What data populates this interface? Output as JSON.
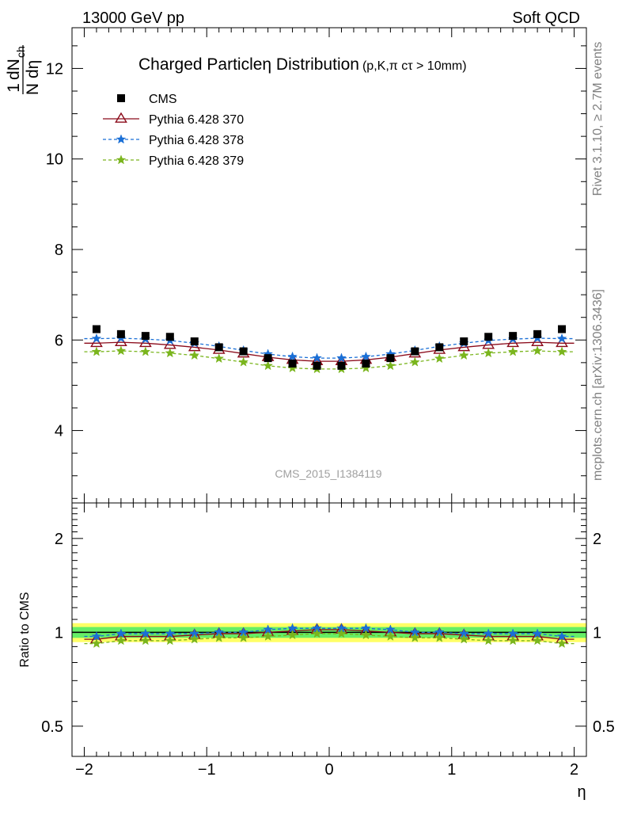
{
  "header": {
    "left": "13000 GeV pp",
    "right": "Soft QCD"
  },
  "side": {
    "rivet": "Rivet 3.1.10, ≥ 2.7M events",
    "mcplots": "mcplots.cern.ch [arXiv:1306.3436]"
  },
  "chart_data": {
    "type": "scatter",
    "title": "Charged Particleη Distribution",
    "subtitle": "(p,K,π cτ > 10mm)",
    "watermark": "CMS_2015_I1384119",
    "xlabel": "η",
    "ylabel": "1/N dN_ch/dη",
    "ratio_ylabel": "Ratio to CMS",
    "xlim": [
      -2.1,
      2.1
    ],
    "ylim": [
      2.4,
      12.9
    ],
    "ratio_ylim": [
      0.4,
      2.6
    ],
    "ratio_log_scale": true,
    "x": [
      -1.9,
      -1.7,
      -1.5,
      -1.3,
      -1.1,
      -0.9,
      -0.7,
      -0.5,
      -0.3,
      -0.1,
      0.1,
      0.3,
      0.5,
      0.7,
      0.9,
      1.1,
      1.3,
      1.5,
      1.7,
      1.9
    ],
    "x_ticks": [
      "−2",
      "−1",
      "0",
      "1",
      "2"
    ],
    "y_ticks": [
      "4",
      "6",
      "8",
      "10",
      "12"
    ],
    "ratio_ticks": [
      "0.5",
      "1",
      "2"
    ],
    "series": [
      {
        "name": "CMS",
        "role": "data",
        "color": "#000000",
        "marker": "square",
        "values": [
          6.24,
          6.13,
          6.09,
          6.07,
          5.97,
          5.84,
          5.75,
          5.6,
          5.48,
          5.43,
          5.43,
          5.48,
          5.6,
          5.75,
          5.84,
          5.97,
          6.07,
          6.09,
          6.13,
          6.24
        ]
      },
      {
        "name": "Pythia 6.428 370",
        "color": "#8b0a1a",
        "marker": "open-triangle",
        "dash": "solid",
        "values": [
          5.93,
          5.95,
          5.93,
          5.89,
          5.84,
          5.78,
          5.7,
          5.62,
          5.56,
          5.53,
          5.53,
          5.56,
          5.62,
          5.7,
          5.78,
          5.84,
          5.89,
          5.93,
          5.95,
          5.93
        ],
        "ratio": [
          0.95,
          0.97,
          0.97,
          0.97,
          0.98,
          0.99,
          0.99,
          1.0,
          1.01,
          1.02,
          1.02,
          1.01,
          1.0,
          0.99,
          0.99,
          0.98,
          0.97,
          0.97,
          0.97,
          0.95
        ]
      },
      {
        "name": "Pythia 6.428 378",
        "color": "#1a6fd6",
        "marker": "star",
        "dash": "dashed",
        "values": [
          6.03,
          6.04,
          6.02,
          5.99,
          5.93,
          5.86,
          5.77,
          5.69,
          5.63,
          5.6,
          5.6,
          5.63,
          5.69,
          5.77,
          5.86,
          5.93,
          5.99,
          6.02,
          6.04,
          6.03
        ],
        "ratio": [
          0.97,
          0.99,
          0.99,
          0.99,
          0.99,
          1.0,
          1.0,
          1.02,
          1.03,
          1.03,
          1.03,
          1.03,
          1.02,
          1.0,
          1.0,
          0.99,
          0.99,
          0.99,
          0.99,
          0.97
        ]
      },
      {
        "name": "Pythia 6.428 379",
        "color": "#7ab51d",
        "marker": "star",
        "dash": "dashed",
        "values": [
          5.74,
          5.76,
          5.74,
          5.71,
          5.66,
          5.59,
          5.51,
          5.43,
          5.38,
          5.36,
          5.36,
          5.38,
          5.43,
          5.51,
          5.59,
          5.66,
          5.71,
          5.74,
          5.76,
          5.74
        ],
        "ratio": [
          0.92,
          0.94,
          0.94,
          0.94,
          0.95,
          0.96,
          0.96,
          0.97,
          0.98,
          0.99,
          0.99,
          0.98,
          0.97,
          0.96,
          0.96,
          0.95,
          0.94,
          0.94,
          0.94,
          0.92
        ]
      }
    ],
    "ratio_band": {
      "inner": 0.04,
      "outer": 0.07,
      "inner_color": "#66ee66",
      "outer_color": "#ffff66"
    },
    "legend_position": "top-left"
  }
}
